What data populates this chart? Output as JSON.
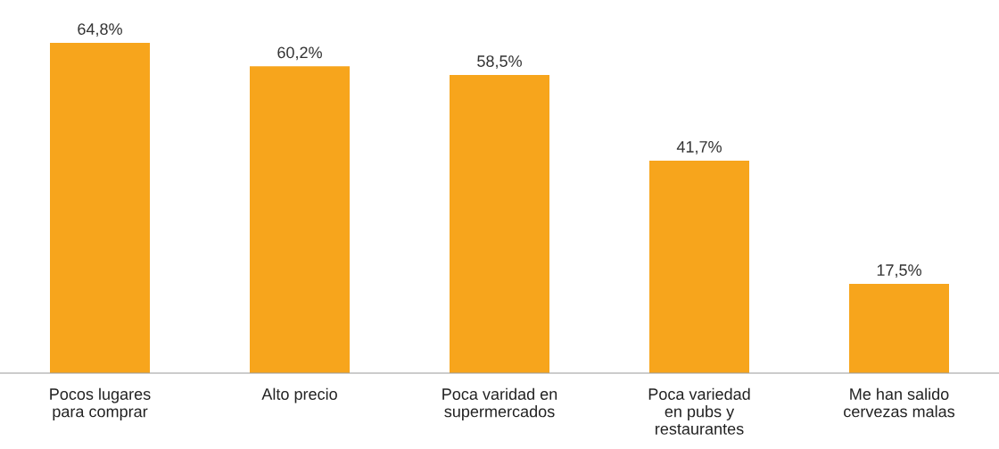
{
  "chart_data": {
    "type": "bar",
    "categories": [
      "Pocos lugares\npara comprar",
      "Alto precio",
      "Poca varidad en\nsupermercados",
      "Poca variedad\nen pubs y\nrestaurantes",
      "Me han salido\ncervezas malas"
    ],
    "values": [
      64.8,
      60.2,
      58.5,
      41.7,
      17.5
    ],
    "value_labels": [
      "64,8%",
      "60,2%",
      "58,5%",
      "41,7%",
      "17,5%"
    ],
    "color": "#f7a51c",
    "tick_labels": "x",
    "grid": false,
    "legend": false
  }
}
